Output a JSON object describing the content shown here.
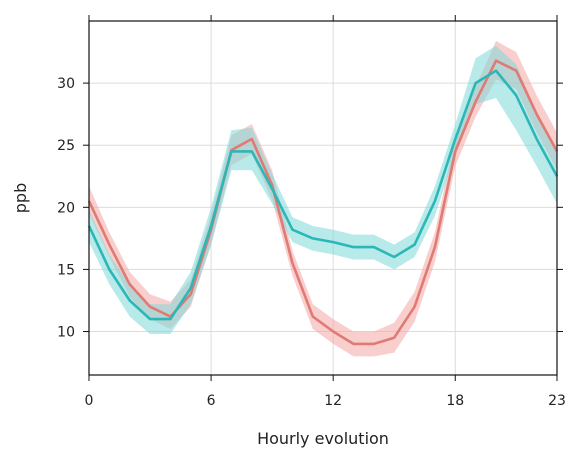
{
  "chart_data": {
    "type": "line",
    "xlabel": "Hourly evolution",
    "ylabel": "ppb",
    "xlim": [
      0,
      23
    ],
    "ylim": [
      6.5,
      35
    ],
    "x_ticks": [
      0,
      6,
      12,
      18,
      23
    ],
    "y_ticks": [
      10,
      15,
      20,
      25,
      30
    ],
    "grid": true,
    "series": [
      {
        "line_color": "#e07a74",
        "band_color": "#f2a8a4",
        "values": [
          20.5,
          17.0,
          13.8,
          12.0,
          11.2,
          13.0,
          18.2,
          24.6,
          25.5,
          21.8,
          15.5,
          11.2,
          10.0,
          9.0,
          9.0,
          9.5,
          12.0,
          16.8,
          24.5,
          28.5,
          31.8,
          31.0,
          27.5,
          24.5
        ],
        "lower": [
          19.5,
          16.0,
          12.8,
          11.0,
          10.2,
          12.0,
          17.0,
          23.4,
          24.3,
          20.6,
          14.5,
          10.2,
          9.0,
          8.0,
          8.0,
          8.3,
          10.8,
          15.6,
          23.3,
          27.3,
          30.3,
          29.5,
          26.0,
          23.0
        ],
        "upper": [
          21.7,
          18.0,
          14.8,
          13.0,
          12.4,
          14.2,
          19.4,
          25.8,
          26.7,
          23.0,
          16.5,
          12.2,
          11.0,
          10.0,
          10.0,
          10.7,
          13.2,
          18.0,
          25.7,
          29.7,
          33.4,
          32.5,
          29.0,
          26.0
        ]
      },
      {
        "line_color": "#2bb7b7",
        "band_color": "#7fd8d8",
        "values": [
          18.5,
          15.0,
          12.5,
          11.0,
          11.0,
          13.5,
          18.5,
          24.5,
          24.5,
          21.5,
          18.2,
          17.5,
          17.2,
          16.8,
          16.8,
          16.0,
          17.0,
          20.5,
          25.5,
          30.0,
          31.0,
          29.0,
          25.5,
          22.5
        ],
        "lower": [
          17.2,
          13.8,
          11.2,
          9.8,
          9.8,
          12.2,
          17.0,
          23.0,
          23.0,
          20.3,
          17.2,
          16.5,
          16.2,
          15.8,
          15.8,
          15.0,
          16.0,
          19.3,
          24.3,
          28.3,
          28.8,
          26.2,
          23.3,
          20.3
        ],
        "upper": [
          19.8,
          16.2,
          13.8,
          12.2,
          12.2,
          14.8,
          20.0,
          26.2,
          26.4,
          22.7,
          19.2,
          18.5,
          18.2,
          17.8,
          17.8,
          17.0,
          18.0,
          21.7,
          26.7,
          32.0,
          33.0,
          31.5,
          27.5,
          24.7
        ]
      }
    ]
  }
}
